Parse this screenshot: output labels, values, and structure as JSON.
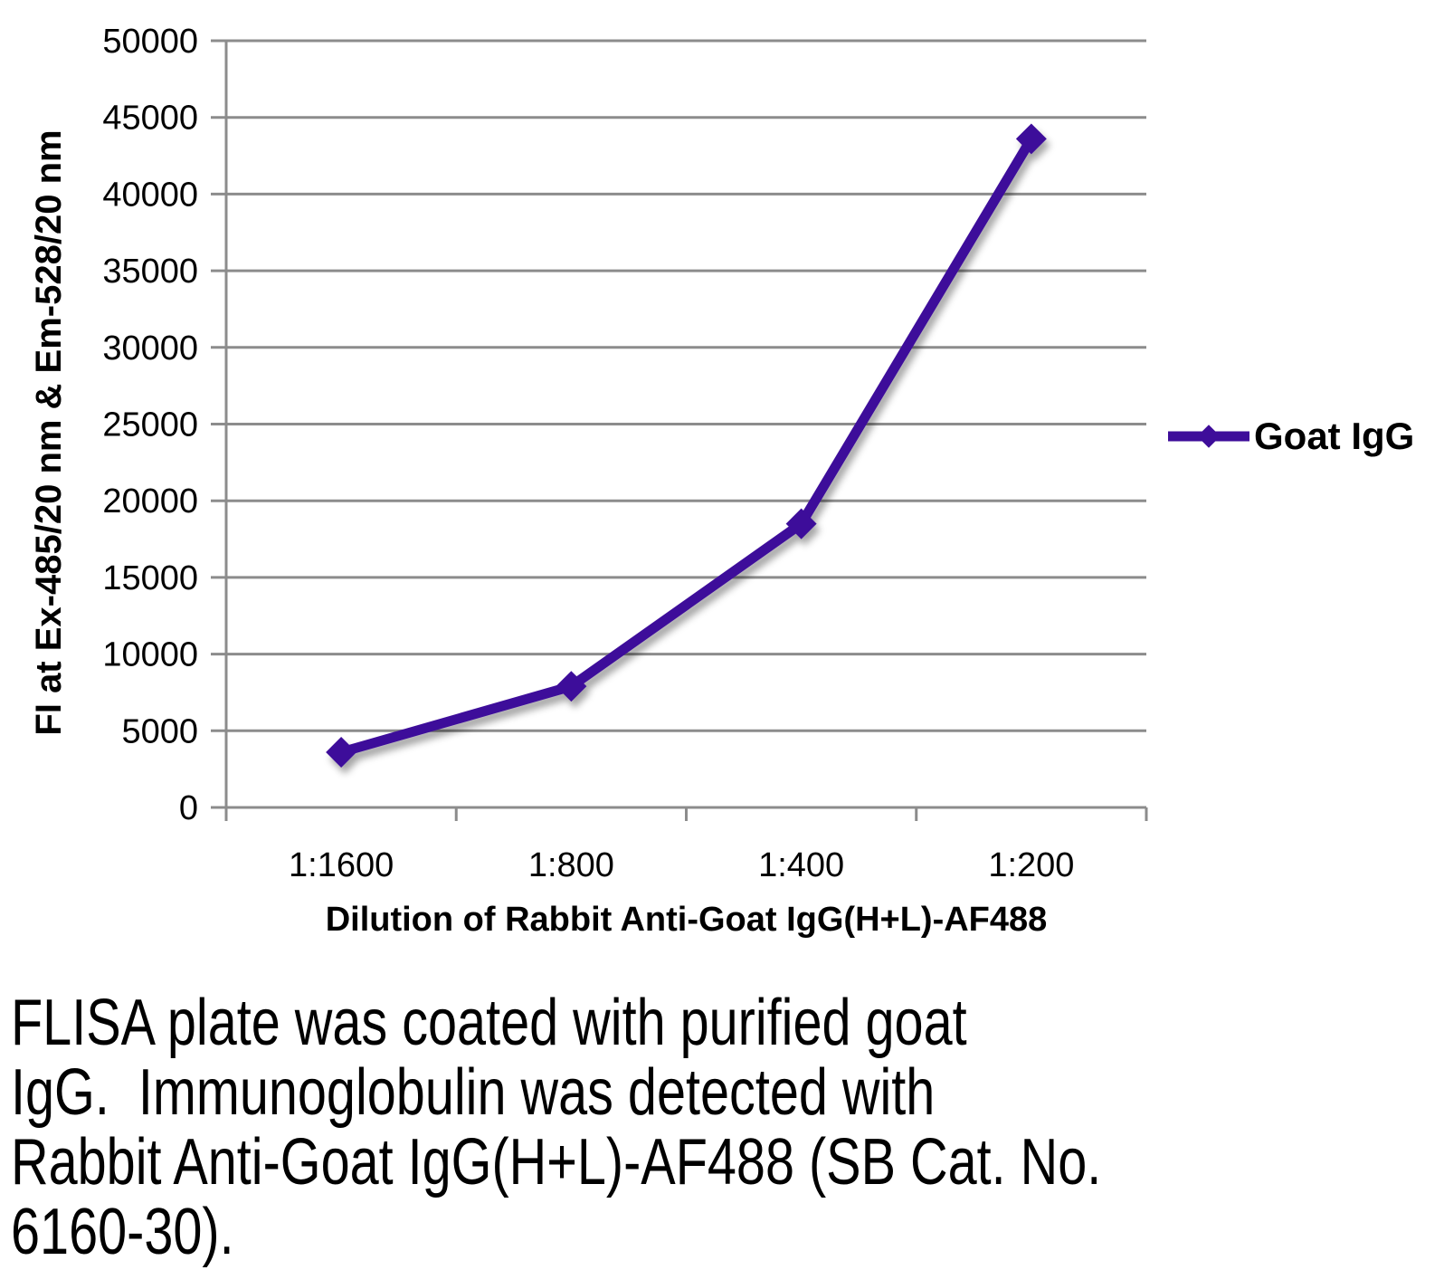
{
  "chart_data": {
    "type": "line",
    "categories": [
      "1:1600",
      "1:800",
      "1:400",
      "1:200"
    ],
    "series": [
      {
        "name": "Goat IgG",
        "values": [
          3600,
          7900,
          18500,
          43600
        ]
      }
    ],
    "xlabel": "Dilution of Rabbit Anti-Goat IgG(H+L)-AF488",
    "ylabel": "FI at Ex-485/20 nm & Em-528/20 nm",
    "ylim": [
      0,
      50000
    ],
    "ytick_step": 5000,
    "y_tick_labels": [
      "0",
      "5000",
      "10000",
      "15000",
      "20000",
      "25000",
      "30000",
      "35000",
      "40000",
      "45000",
      "50000"
    ],
    "grid": true,
    "marker": "diamond",
    "legend_position": "right"
  },
  "legend": {
    "label": "Goat IgG"
  },
  "caption": {
    "lines": [
      "FLISA plate was coated with purified goat",
      "IgG.  Immunoglobulin was detected with",
      "Rabbit Anti-Goat IgG(H+L)-AF488 (SB Cat. No.",
      "6160-30)."
    ]
  },
  "colors": {
    "series": "#3E0D9A",
    "grid": "#8C8C8C",
    "axis": "#8C8C8C",
    "text": "#000000",
    "background": "#FFFFFF"
  }
}
